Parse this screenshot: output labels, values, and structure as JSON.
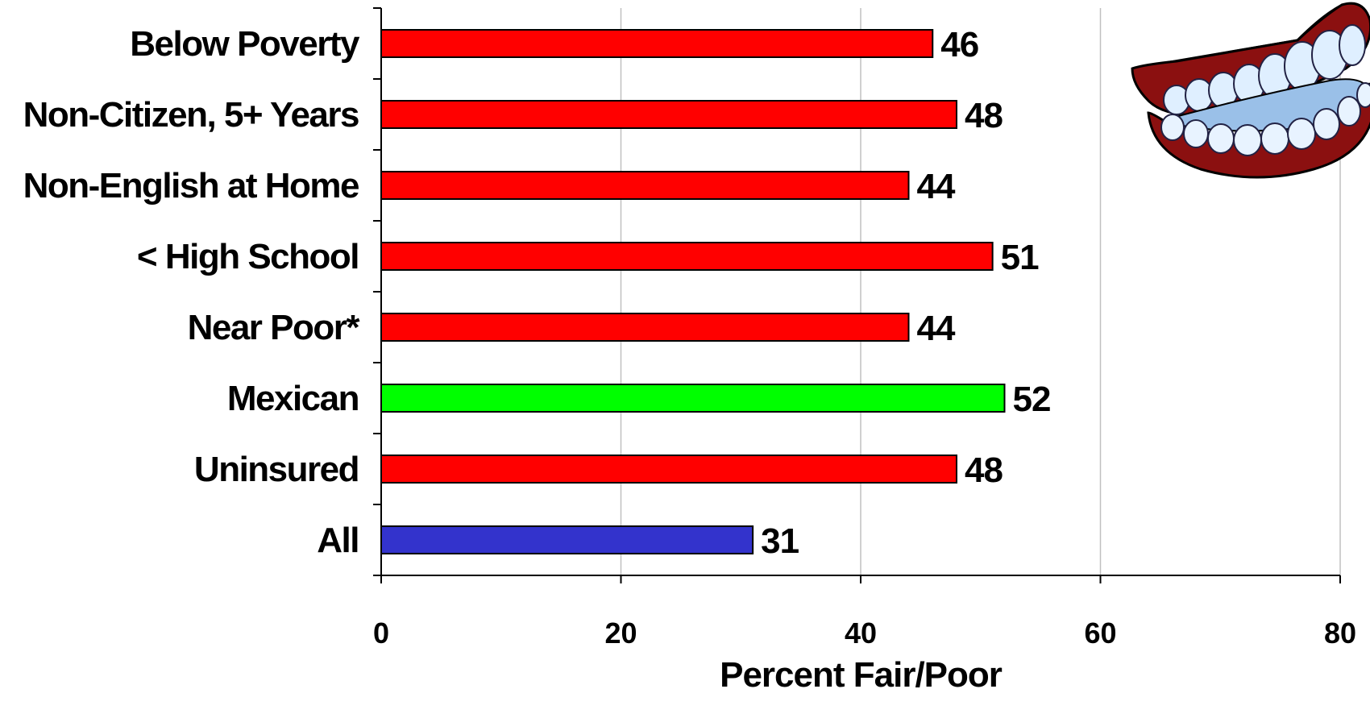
{
  "chart_data": {
    "type": "bar",
    "orientation": "horizontal",
    "categories": [
      "Below Poverty",
      "Non-Citizen, 5+ Years",
      "Non-English at Home",
      "< High School",
      "Near Poor*",
      "Mexican",
      "Uninsured",
      "All"
    ],
    "values": [
      46,
      48,
      44,
      51,
      44,
      52,
      48,
      31
    ],
    "bar_colors": [
      "#ff0000",
      "#ff0000",
      "#ff0000",
      "#ff0000",
      "#ff0000",
      "#00ff00",
      "#ff0000",
      "#3333cc"
    ],
    "value_labels": [
      "46",
      "48",
      "44",
      "51",
      "44",
      "52",
      "48",
      "31"
    ],
    "xlabel": "Percent Fair/Poor",
    "ylabel": "",
    "title": "",
    "xlim": [
      0,
      80
    ],
    "xticks": [
      "0",
      "20",
      "40",
      "60",
      "80"
    ],
    "grid": "vertical",
    "legend": "none"
  },
  "decoration": {
    "icon": "chattering-teeth-icon"
  }
}
